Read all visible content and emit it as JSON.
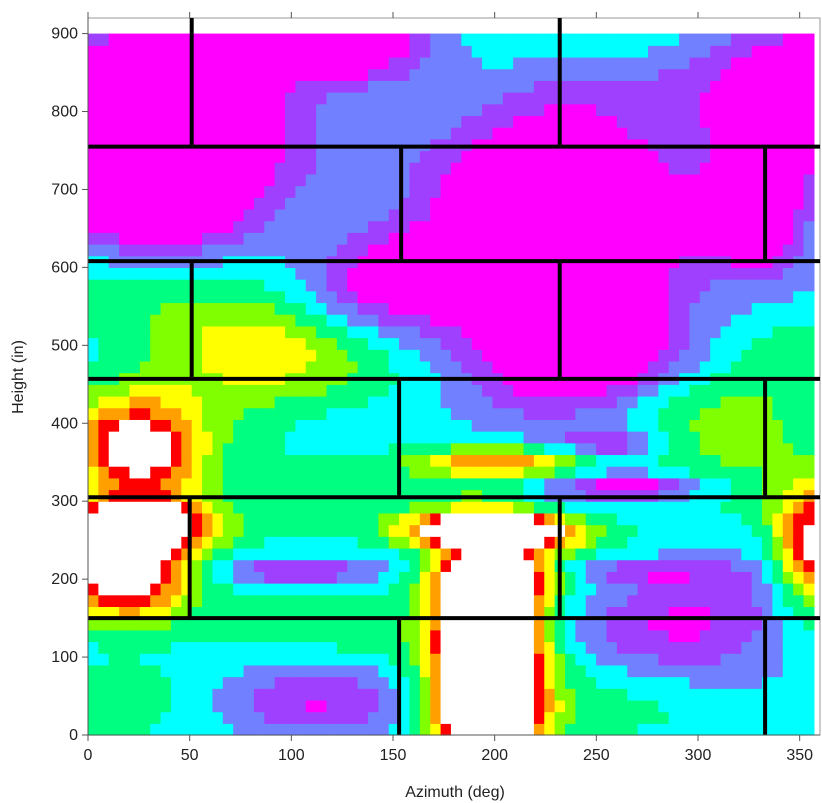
{
  "chart_data": {
    "type": "heatmap",
    "title": "",
    "xlabel": "Azimuth (deg)",
    "ylabel": "Height (in)",
    "xlim": [
      0,
      360
    ],
    "ylim": [
      0,
      920
    ],
    "x_ticks": [
      0,
      50,
      100,
      150,
      200,
      250,
      300,
      350
    ],
    "x_tick_labels": [
      "0",
      "50",
      "100",
      "150",
      "200",
      "250",
      "300",
      "350"
    ],
    "y_ticks": [
      0,
      100,
      200,
      300,
      400,
      500,
      600,
      700,
      800,
      900
    ],
    "y_tick_labels": [
      "0",
      "100",
      "200",
      "300",
      "400",
      "500",
      "600",
      "700",
      "800",
      "900"
    ],
    "data_extent": {
      "x": [
        0,
        357
      ],
      "y": [
        0,
        900
      ]
    },
    "colormap": [
      "#ff00ff",
      "#a040ff",
      "#7080ff",
      "#00ffff",
      "#00ff80",
      "#80ff00",
      "#ffff00",
      "#ffa000",
      "#ff0000",
      "#ffffff"
    ],
    "hotspots": [
      {
        "x": 197,
        "y": 110,
        "sx": 18,
        "sy": 95,
        "amp": 1.15
      },
      {
        "x": 197,
        "y": 25,
        "sx": 15,
        "sy": 30,
        "amp": 0.55
      },
      {
        "x": 200,
        "y": 262,
        "sx": 28,
        "sy": 16,
        "amp": 0.95
      },
      {
        "x": 200,
        "y": 200,
        "sx": 18,
        "sy": 15,
        "amp": 0.55
      },
      {
        "x": 22,
        "y": 268,
        "sx": 24,
        "sy": 22,
        "amp": 0.95
      },
      {
        "x": 18,
        "y": 200,
        "sx": 22,
        "sy": 40,
        "amp": 0.6
      },
      {
        "x": 25,
        "y": 360,
        "sx": 22,
        "sy": 50,
        "amp": 0.6
      },
      {
        "x": 355,
        "y": 240,
        "sx": 12,
        "sy": 50,
        "amp": 0.6
      },
      {
        "x": 205,
        "y": 350,
        "sx": 30,
        "sy": 14,
        "amp": 0.45
      },
      {
        "x": 300,
        "y": 150,
        "sx": 40,
        "sy": 60,
        "amp": -0.3
      },
      {
        "x": 110,
        "y": 40,
        "sx": 35,
        "sy": 40,
        "amp": -0.25
      },
      {
        "x": 100,
        "y": 210,
        "sx": 30,
        "sy": 12,
        "amp": -0.25
      },
      {
        "x": 270,
        "y": 210,
        "sx": 30,
        "sy": 12,
        "amp": -0.2
      },
      {
        "x": 270,
        "y": 320,
        "sx": 25,
        "sy": 12,
        "amp": -0.3
      },
      {
        "x": 260,
        "y": 375,
        "sx": 20,
        "sy": 15,
        "amp": -0.25
      },
      {
        "x": 240,
        "y": 520,
        "sx": 40,
        "sy": 110,
        "amp": -0.55
      },
      {
        "x": 230,
        "y": 700,
        "sx": 40,
        "sy": 80,
        "amp": -0.6
      },
      {
        "x": 40,
        "y": 700,
        "sx": 40,
        "sy": 60,
        "amp": -0.55
      },
      {
        "x": 30,
        "y": 830,
        "sx": 50,
        "sy": 60,
        "amp": -0.6
      },
      {
        "x": 350,
        "y": 820,
        "sx": 40,
        "sy": 70,
        "amp": -0.5
      },
      {
        "x": 150,
        "y": 590,
        "sx": 30,
        "sy": 60,
        "amp": -0.35
      },
      {
        "x": 330,
        "y": 660,
        "sx": 20,
        "sy": 50,
        "amp": -0.45
      },
      {
        "x": 130,
        "y": 880,
        "sx": 30,
        "sy": 40,
        "amp": -0.4
      },
      {
        "x": 80,
        "y": 500,
        "sx": 40,
        "sy": 60,
        "amp": 0.25
      },
      {
        "x": 300,
        "y": 400,
        "sx": 50,
        "sy": 60,
        "amp": 0.2
      }
    ],
    "horizontal_lines": [
      {
        "y": 150,
        "x1": 0,
        "x2": 360
      },
      {
        "y": 305,
        "x1": 0,
        "x2": 360
      },
      {
        "y": 457,
        "x1": 0,
        "x2": 360
      },
      {
        "y": 608,
        "x1": 0,
        "x2": 360
      },
      {
        "y": 755,
        "x1": 0,
        "x2": 360
      }
    ],
    "vertical_lines": [
      {
        "x": 153,
        "y1": 0,
        "y2": 150
      },
      {
        "x": 333,
        "y1": 0,
        "y2": 150
      },
      {
        "x": 50,
        "y1": 150,
        "y2": 305
      },
      {
        "x": 232,
        "y1": 150,
        "y2": 305
      },
      {
        "x": 153,
        "y1": 305,
        "y2": 457
      },
      {
        "x": 333,
        "y1": 305,
        "y2": 457
      },
      {
        "x": 51,
        "y1": 457,
        "y2": 608
      },
      {
        "x": 232,
        "y1": 457,
        "y2": 608
      },
      {
        "x": 154,
        "y1": 608,
        "y2": 755
      },
      {
        "x": 333,
        "y1": 608,
        "y2": 755
      },
      {
        "x": 51,
        "y1": 755,
        "y2": 920
      },
      {
        "x": 232,
        "y1": 755,
        "y2": 920
      }
    ]
  }
}
